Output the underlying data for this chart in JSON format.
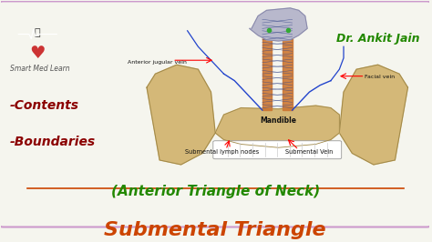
{
  "bg_color": "#f5f5ee",
  "border_color": "#cc99cc",
  "title": "Submental Triangle",
  "subtitle": "(Anterior Triangle of Neck)",
  "bullet1": "-Boundaries",
  "bullet2": "-Contents",
  "title_color": "#cc4400",
  "subtitle_color": "#228800",
  "bullet_color": "#8b0000",
  "brand_text": "Smart Med Learn",
  "author": "Dr. Ankit Jain",
  "author_color": "#228800",
  "labels": {
    "submental_lymph": "Submental lymph nodes",
    "submental_vein": "Submental Vein",
    "mandible": "Mandible",
    "anterior_jugular": "Anterior jugular vein",
    "facial_vein": "Facial vein"
  },
  "label_color": "#111111",
  "bone_color": "#d4b878",
  "bone_edge": "#a08848",
  "muscle_color": "#cc7733",
  "vein_color": "#2244cc",
  "nerve_color": "#2255aa",
  "hyoid_color": "#b8b8cc",
  "green_color": "#33aa33",
  "figsize": [
    4.74,
    2.66
  ],
  "dpi": 100
}
